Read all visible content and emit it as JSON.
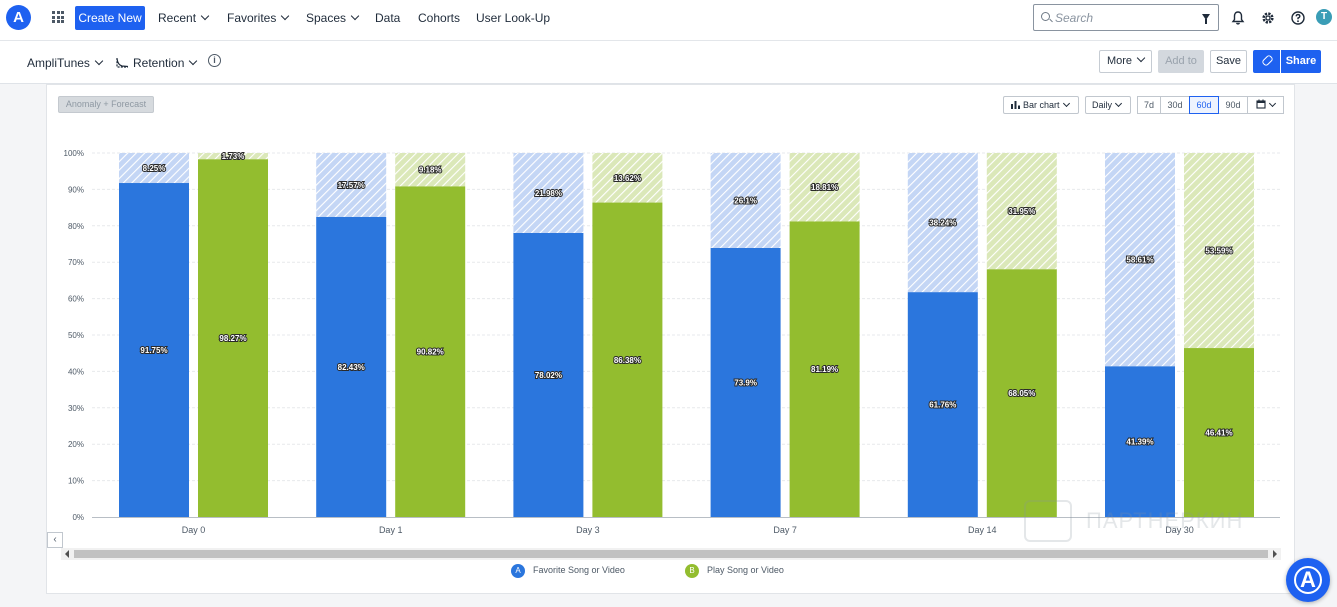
{
  "topbar": {
    "logo_letter": "A",
    "create_new": "Create New",
    "nav": [
      "Recent",
      "Favorites",
      "Spaces",
      "Data",
      "Cohorts",
      "User Look-Up"
    ],
    "search_placeholder": "Search",
    "avatar_letter": "T"
  },
  "subbar": {
    "project": "AmpliTunes",
    "chart_type": "Retention",
    "info_glyph": "i",
    "more": "More",
    "add_to": "Add to",
    "save": "Save",
    "share": "Share"
  },
  "toolbar": {
    "anomaly": "Anomaly + Forecast",
    "chart_kind": "Bar chart",
    "interval": "Daily",
    "ranges": [
      "7d",
      "30d",
      "60d",
      "90d"
    ],
    "active_range": "60d"
  },
  "legend": [
    {
      "letter": "A",
      "label": "Favorite Song or Video",
      "color": "#2b76dd"
    },
    {
      "letter": "B",
      "label": "Play Song or Video",
      "color": "#93bd2f"
    }
  ],
  "watermark": "ПАРТНЕРКИН",
  "fab_letter": "A",
  "chart_data": {
    "type": "bar",
    "categories": [
      "Day 0",
      "Day 1",
      "Day 3",
      "Day 7",
      "Day 14",
      "Day 30"
    ],
    "ylim": [
      0,
      100
    ],
    "yticks": [
      "0%",
      "10%",
      "20%",
      "30%",
      "40%",
      "50%",
      "60%",
      "70%",
      "80%",
      "90%",
      "100%"
    ],
    "grid": true,
    "series": [
      {
        "name": "Favorite Song or Video",
        "color": "#2b76dd",
        "values": [
          91.75,
          82.43,
          78.02,
          73.9,
          61.76,
          41.39
        ],
        "value_labels": [
          "91.75%",
          "82.43%",
          "78.02%",
          "73.9%",
          "61.76%",
          "41.39%"
        ],
        "remainder_labels": [
          "8.25%",
          "17.57%",
          "21.98%",
          "26.1%",
          "38.24%",
          "58.61%"
        ]
      },
      {
        "name": "Play Song or Video",
        "color": "#93bd2f",
        "values": [
          98.27,
          90.82,
          86.38,
          81.19,
          68.05,
          46.41
        ],
        "value_labels": [
          "98.27%",
          "90.82%",
          "86.38%",
          "81.19%",
          "68.05%",
          "46.41%"
        ],
        "remainder_labels": [
          "1.73%",
          "9.18%",
          "13.62%",
          "18.81%",
          "31.95%",
          "53.59%"
        ]
      }
    ]
  }
}
